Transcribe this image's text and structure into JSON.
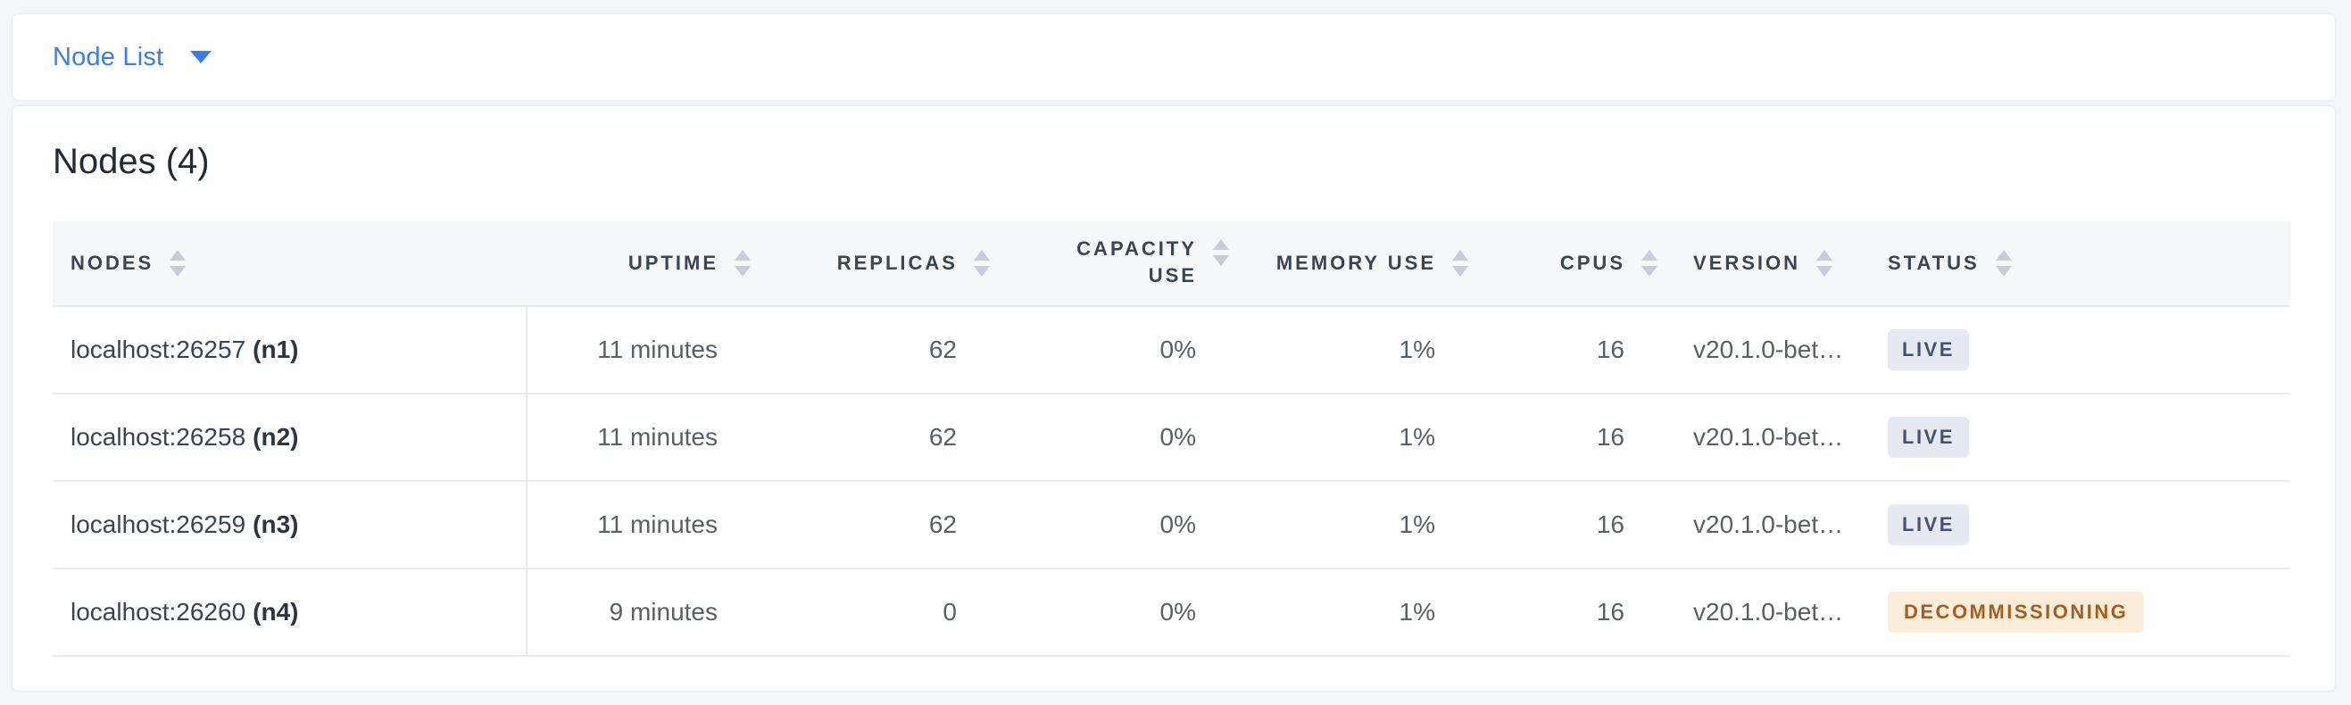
{
  "colors": {
    "page_background": "#F4F6FA",
    "card_background": "#FFFFFF",
    "accent_blue": "#3D7CE0",
    "table_header_background": "#F6F7F9",
    "table_border": "#E7EAF0",
    "header_text": "#394455",
    "cell_text": "#5A5E66",
    "badge_live_background": "#E5E9F2",
    "badge_live_text": "#44536B",
    "badge_decommissioning_background": "#FAEEDB",
    "badge_decommissioning_text": "#A55E20",
    "sort_icon": "#C7CCD7"
  },
  "view_selector": {
    "label": "Node List"
  },
  "panel": {
    "title": "Nodes (4)"
  },
  "table": {
    "columns": [
      {
        "id": "nodes",
        "label": "NODES",
        "align": "left"
      },
      {
        "id": "uptime",
        "label": "UPTIME",
        "align": "right"
      },
      {
        "id": "replicas",
        "label": "REPLICAS",
        "align": "right"
      },
      {
        "id": "capacity",
        "label": "CAPACITY USE",
        "align": "right"
      },
      {
        "id": "memory",
        "label": "MEMORY USE",
        "align": "right"
      },
      {
        "id": "cpus",
        "label": "CPUS",
        "align": "right"
      },
      {
        "id": "version",
        "label": "VERSION",
        "align": "left"
      },
      {
        "id": "status",
        "label": "STATUS",
        "align": "left"
      }
    ],
    "rows": [
      {
        "node_host": "localhost:26257",
        "node_id": "(n1)",
        "uptime": "11 minutes",
        "replicas": "62",
        "capacity_use": "0%",
        "memory_use": "1%",
        "cpus": "16",
        "version": "v20.1.0-bet…",
        "status": "LIVE"
      },
      {
        "node_host": "localhost:26258",
        "node_id": "(n2)",
        "uptime": "11 minutes",
        "replicas": "62",
        "capacity_use": "0%",
        "memory_use": "1%",
        "cpus": "16",
        "version": "v20.1.0-bet…",
        "status": "LIVE"
      },
      {
        "node_host": "localhost:26259",
        "node_id": "(n3)",
        "uptime": "11 minutes",
        "replicas": "62",
        "capacity_use": "0%",
        "memory_use": "1%",
        "cpus": "16",
        "version": "v20.1.0-bet…",
        "status": "LIVE"
      },
      {
        "node_host": "localhost:26260",
        "node_id": "(n4)",
        "uptime": "9 minutes",
        "replicas": "0",
        "capacity_use": "0%",
        "memory_use": "1%",
        "cpus": "16",
        "version": "v20.1.0-bet…",
        "status": "DECOMMISSIONING"
      }
    ]
  }
}
